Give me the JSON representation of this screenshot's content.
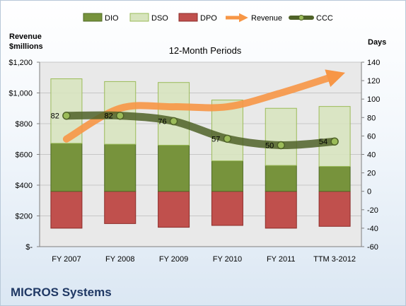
{
  "company": "MICROS Systems",
  "chart_data": {
    "type": "bar",
    "title": "12-Month Periods",
    "left_axis_title": [
      "Revenue",
      "$millions"
    ],
    "right_axis_title": "Days",
    "left_ylim": [
      0,
      1200
    ],
    "left_ticks": [
      0,
      200,
      400,
      600,
      800,
      1000,
      1200
    ],
    "left_tick_labels": [
      "$-",
      "$200",
      "$400",
      "$600",
      "$800",
      "$1,000",
      "$1,200"
    ],
    "right_ylim": [
      -60,
      140
    ],
    "right_ticks": [
      -60,
      -40,
      -20,
      0,
      20,
      40,
      60,
      80,
      100,
      120,
      140
    ],
    "categories": [
      "FY 2007",
      "FY 2008",
      "FY 2009",
      "FY 2010",
      "FY 2011",
      "TTM 3-2012"
    ],
    "legend": [
      "DIO",
      "DSO",
      "DPO",
      "Revenue",
      "CCC"
    ],
    "colors": {
      "DIO": "#77933c",
      "DSO": "#d7e4bd",
      "DPO": "#c0504d",
      "Revenue": "#f79646",
      "CCC": "#4f6228"
    },
    "series": [
      {
        "name": "DIO",
        "axis": "right",
        "values": [
          52,
          51,
          50,
          33,
          28,
          27
        ]
      },
      {
        "name": "DSO",
        "axis": "right",
        "values": [
          70,
          68,
          68,
          66,
          62,
          65
        ]
      },
      {
        "name": "DPO",
        "axis": "right",
        "values": [
          -40,
          -35,
          -39,
          -37,
          -40,
          -38
        ]
      },
      {
        "name": "Revenue",
        "axis": "left",
        "values": [
          700,
          900,
          910,
          910,
          1000,
          1110
        ]
      },
      {
        "name": "CCC",
        "axis": "right",
        "values": [
          82,
          82,
          76,
          57,
          50,
          54
        ]
      }
    ],
    "ccc_labels": [
      "82",
      "82",
      "76",
      "57",
      "50",
      "54"
    ]
  }
}
